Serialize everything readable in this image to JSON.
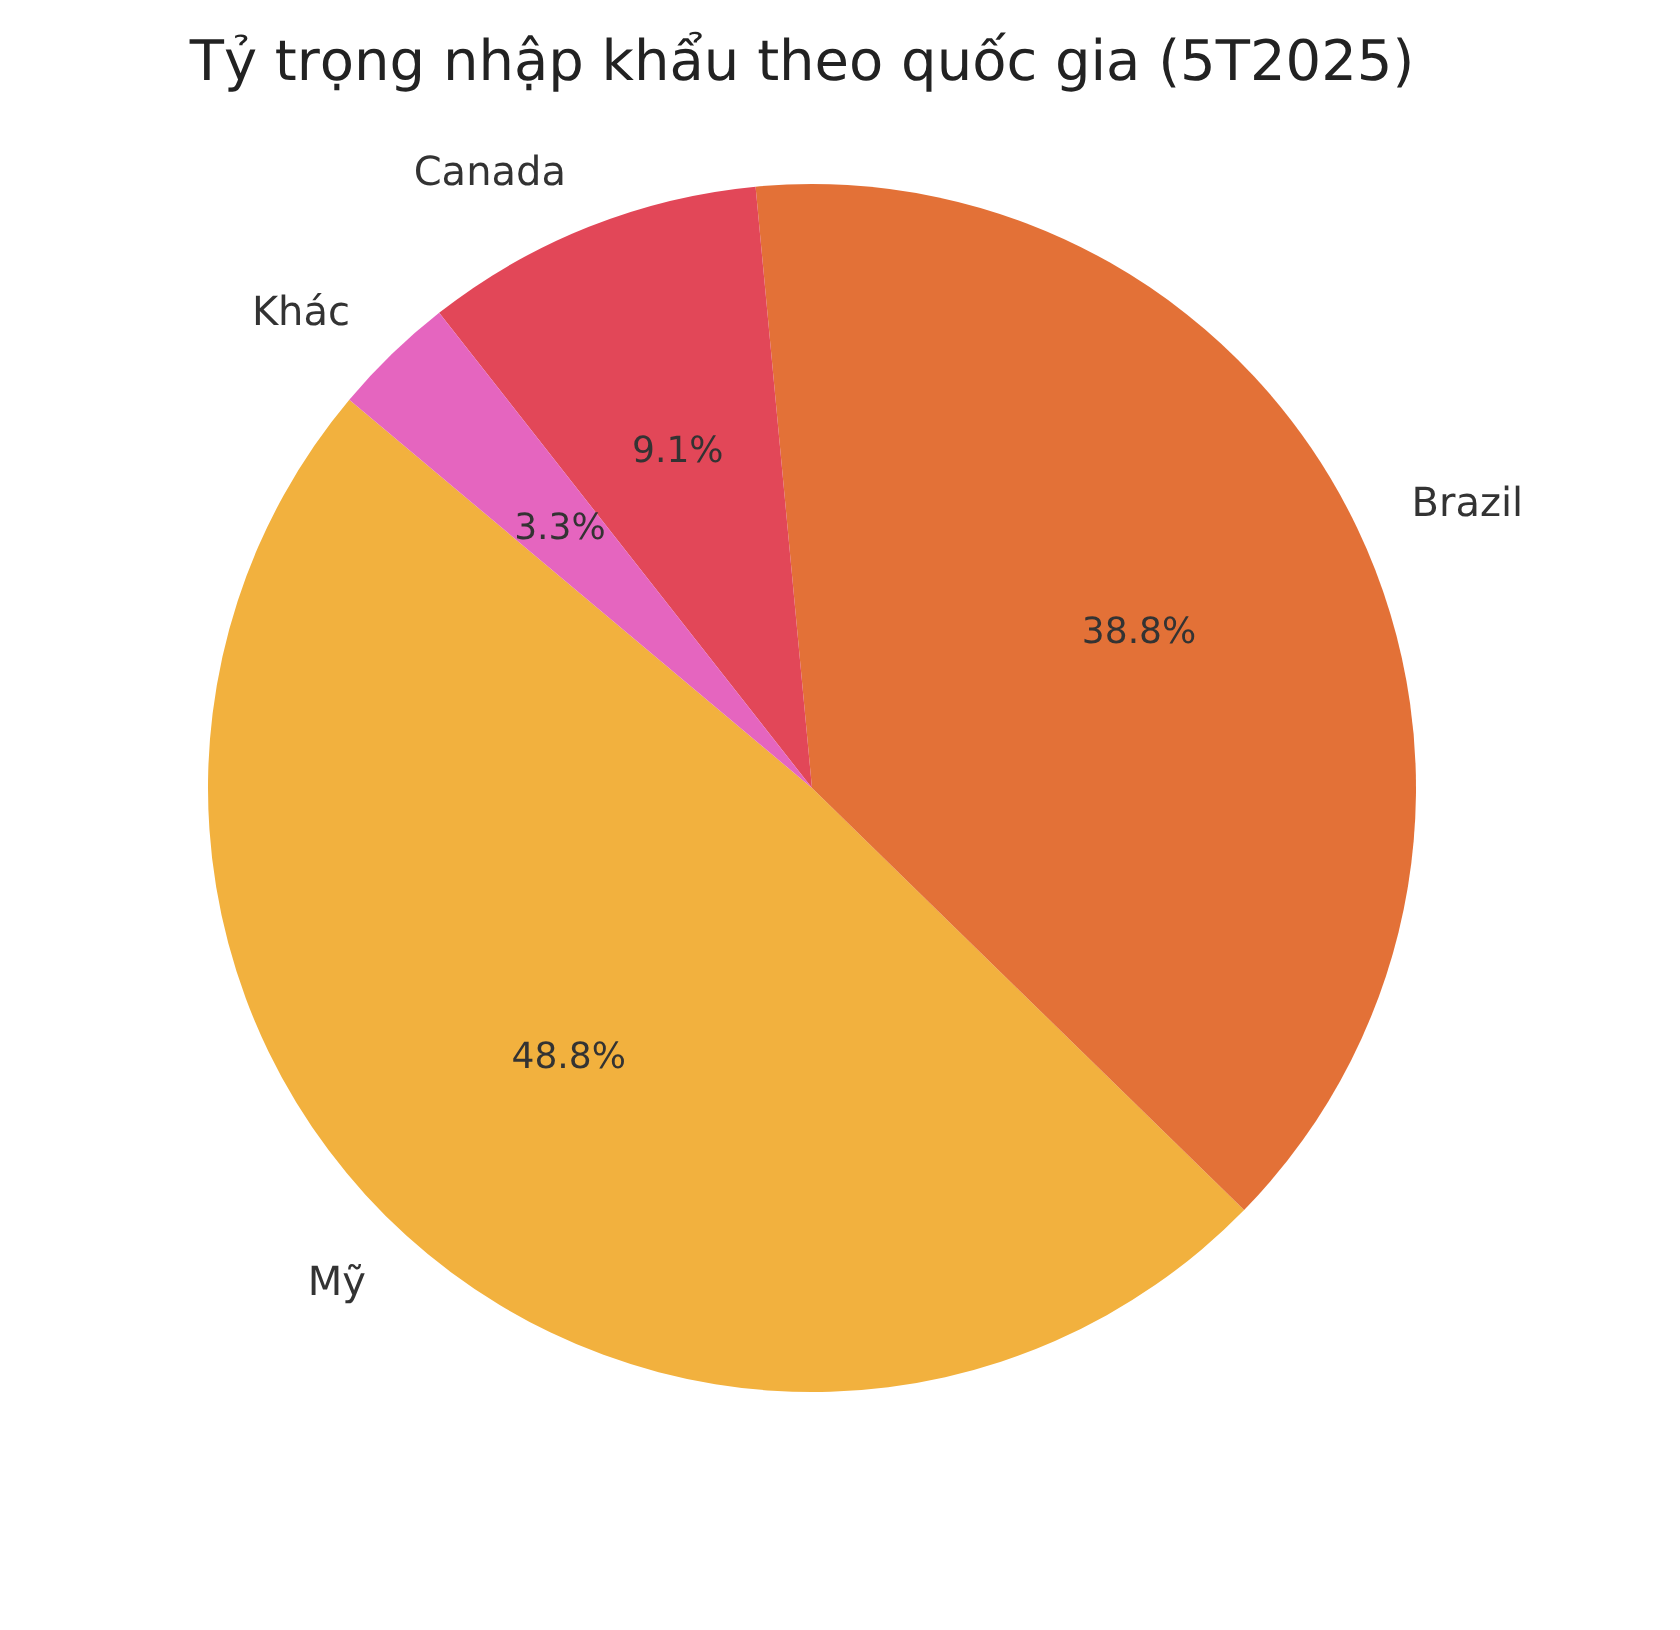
{
  "chart_data": {
    "type": "pie",
    "title": "Tỷ trọng nhập khẩu theo quốc gia (5T2025)",
    "categories": [
      "Mỹ",
      "Brazil",
      "Canada",
      "Khác"
    ],
    "values": [
      48.8,
      38.8,
      9.1,
      3.3
    ],
    "colors": [
      "#f2b13e",
      "#e37137",
      "#e24758",
      "#e565bf"
    ],
    "value_labels": [
      "48.8%",
      "38.8%",
      "9.1%",
      "3.3%"
    ],
    "legend": false
  }
}
